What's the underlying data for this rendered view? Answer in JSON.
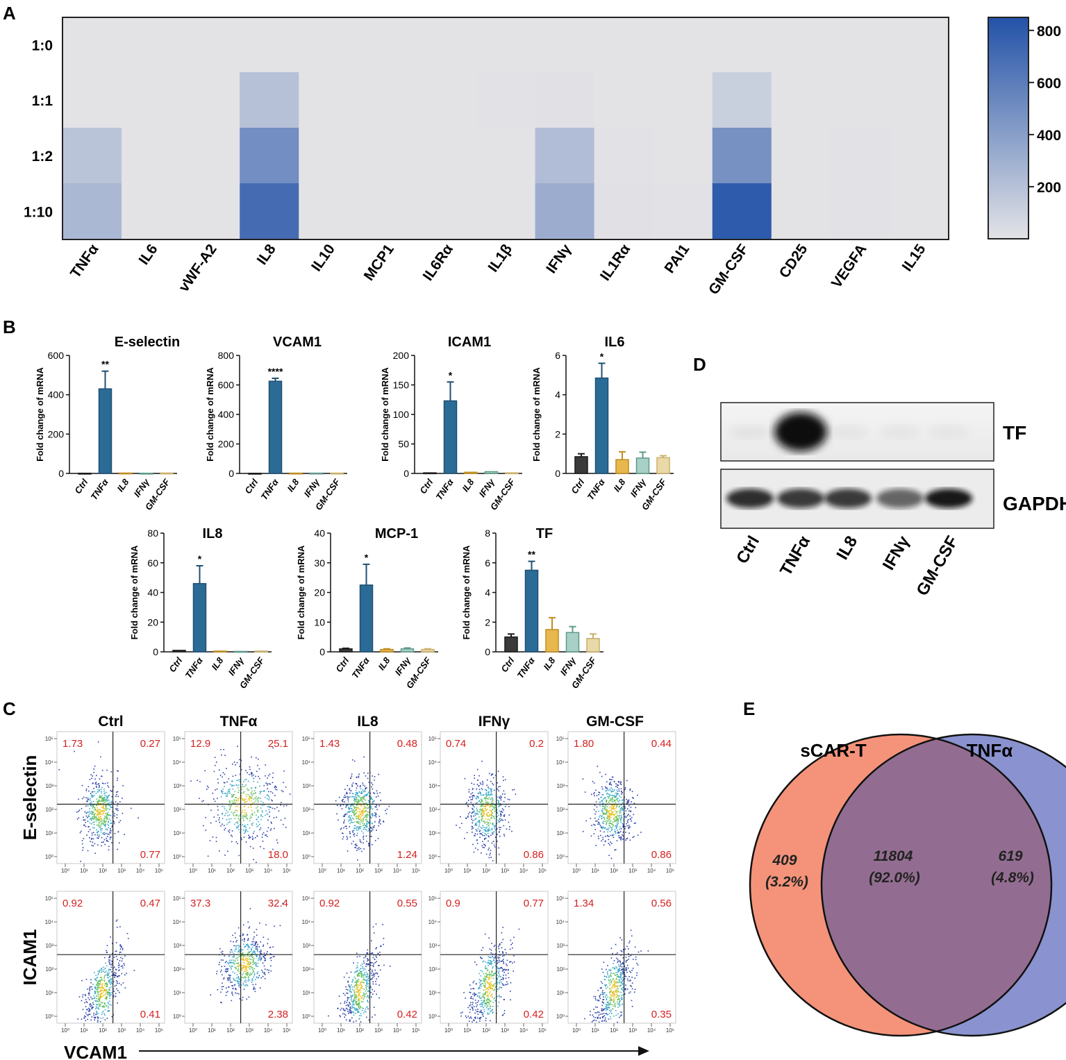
{
  "panels": {
    "A": "A",
    "B": "B",
    "C": "C",
    "D": "D",
    "E": "E"
  },
  "chart_data": [
    {
      "id": "A",
      "type": "heatmap",
      "title": "",
      "rows": [
        "1:0",
        "1:1",
        "1:2",
        "1:10"
      ],
      "columns": [
        "TNFα",
        "IL6",
        "vWF-A2",
        "IL8",
        "IL10",
        "MCP1",
        "IL6Rα",
        "IL1β",
        "IFNγ",
        "IL1Rα",
        "PAI1",
        "GM-CSF",
        "CD25",
        "VEGFA",
        "IL15"
      ],
      "values": [
        [
          0,
          0,
          0,
          0,
          0,
          0,
          0,
          0,
          0,
          0,
          0,
          0,
          0,
          0,
          0
        ],
        [
          0,
          0,
          0,
          200,
          0,
          0,
          0,
          5,
          10,
          0,
          0,
          120,
          0,
          0,
          0
        ],
        [
          180,
          0,
          0,
          500,
          0,
          0,
          0,
          0,
          220,
          5,
          0,
          480,
          0,
          5,
          0
        ],
        [
          250,
          0,
          0,
          700,
          0,
          0,
          0,
          0,
          320,
          10,
          5,
          800,
          0,
          5,
          0
        ]
      ],
      "colorbar": {
        "min": 0,
        "max": 850,
        "ticks": [
          200,
          400,
          600,
          800
        ],
        "low_color": "#e3e3e6",
        "high_color": "#2352a8"
      }
    },
    {
      "id": "B1",
      "type": "bar",
      "title": "E-selectin",
      "ylabel": "Fold change of mRNA",
      "ylim": [
        0,
        600
      ],
      "yticks": [
        0,
        200,
        400,
        600
      ],
      "categories": [
        "Ctrl",
        "TNFα",
        "IL8",
        "IFNγ",
        "GM-CSF"
      ],
      "values": [
        1,
        430,
        2,
        1,
        2
      ],
      "errors": [
        0.2,
        90,
        0.5,
        0.2,
        0.5
      ],
      "significance": [
        "",
        "**",
        "",
        "",
        ""
      ]
    },
    {
      "id": "B2",
      "type": "bar",
      "title": "VCAM1",
      "ylabel": "Fold change of mRNA",
      "ylim": [
        0,
        800
      ],
      "yticks": [
        0,
        200,
        400,
        600,
        800
      ],
      "categories": [
        "Ctrl",
        "TNFα",
        "IL8",
        "IFNγ",
        "GM-CSF"
      ],
      "values": [
        1,
        625,
        2,
        2,
        2
      ],
      "errors": [
        0.2,
        20,
        0.5,
        0.5,
        0.5
      ],
      "significance": [
        "",
        "****",
        "",
        "",
        ""
      ]
    },
    {
      "id": "B3",
      "type": "bar",
      "title": "ICAM1",
      "ylabel": "Fold change of mRNA",
      "ylim": [
        0,
        200
      ],
      "yticks": [
        0,
        50,
        100,
        150,
        200
      ],
      "categories": [
        "Ctrl",
        "TNFα",
        "IL8",
        "IFNγ",
        "GM-CSF"
      ],
      "values": [
        1,
        123,
        2,
        3,
        1
      ],
      "errors": [
        0.2,
        32,
        0.5,
        1,
        0.2
      ],
      "significance": [
        "",
        "*",
        "",
        "",
        ""
      ]
    },
    {
      "id": "B4",
      "type": "bar",
      "title": "IL6",
      "ylabel": "Fold change of mRNA",
      "ylim": [
        0,
        6
      ],
      "yticks": [
        0,
        2,
        4,
        6
      ],
      "categories": [
        "Ctrl",
        "TNFα",
        "IL8",
        "IFNγ",
        "GM-CSF"
      ],
      "values": [
        0.85,
        4.85,
        0.7,
        0.78,
        0.8
      ],
      "errors": [
        0.15,
        0.75,
        0.4,
        0.3,
        0.1
      ],
      "significance": [
        "",
        "*",
        "",
        "",
        ""
      ]
    },
    {
      "id": "B5",
      "type": "bar",
      "title": "IL8",
      "ylabel": "Fold change of mRNA",
      "ylim": [
        0,
        80
      ],
      "yticks": [
        0,
        20,
        40,
        60,
        80
      ],
      "categories": [
        "Ctrl",
        "TNFα",
        "IL8",
        "IFNγ",
        "GM-CSF"
      ],
      "values": [
        1,
        46,
        0.5,
        0.3,
        0.5
      ],
      "errors": [
        0.2,
        12,
        0.1,
        0.1,
        0.1
      ],
      "significance": [
        "",
        "*",
        "",
        "",
        ""
      ]
    },
    {
      "id": "B6",
      "type": "bar",
      "title": "MCP-1",
      "ylabel": "Fold change of mRNA",
      "ylim": [
        0,
        40
      ],
      "yticks": [
        0,
        10,
        20,
        30,
        40
      ],
      "categories": [
        "Ctrl",
        "TNFα",
        "IL8",
        "IFNγ",
        "GM-CSF"
      ],
      "values": [
        1,
        22.5,
        0.8,
        1,
        0.8
      ],
      "errors": [
        0.2,
        7,
        0.2,
        0.3,
        0.2
      ],
      "significance": [
        "",
        "*",
        "",
        "",
        ""
      ]
    },
    {
      "id": "B7",
      "type": "bar",
      "title": "TF",
      "ylabel": "Fold change of mRNA",
      "ylim": [
        0,
        8
      ],
      "yticks": [
        0,
        2,
        4,
        6,
        8
      ],
      "categories": [
        "Ctrl",
        "TNFα",
        "IL8",
        "IFNγ",
        "GM-CSF"
      ],
      "values": [
        1,
        5.5,
        1.5,
        1.3,
        0.9
      ],
      "errors": [
        0.2,
        0.6,
        0.8,
        0.4,
        0.3
      ],
      "significance": [
        "",
        "**",
        "",
        "",
        ""
      ]
    }
  ],
  "bar_colors": [
    "#3a3a3a",
    "#2b6c97",
    "#e8b84f",
    "#a9d0c6",
    "#ead9a8"
  ],
  "bar_edge_colors": [
    "#1a1a1a",
    "#1f4f70",
    "#c08c20",
    "#5e9a8c",
    "#c9b06a"
  ],
  "western_blot": {
    "lanes": [
      "Ctrl",
      "TNFα",
      "IL8",
      "IFNγ",
      "GM-CSF"
    ],
    "bands": [
      "TF",
      "GAPDH"
    ],
    "tf_intensity": [
      0.05,
      1.0,
      0.02,
      0.02,
      0.02
    ],
    "gapdh_intensity": [
      0.85,
      0.8,
      0.8,
      0.6,
      0.95
    ]
  },
  "flow": {
    "columns": [
      "Ctrl",
      "TNFα",
      "IL8",
      "IFNγ",
      "GM-CSF"
    ],
    "rows": [
      "E-selectin",
      "ICAM1"
    ],
    "x_axis_label": "VCAM1",
    "tick_labels": [
      "10⁰",
      "10¹",
      "10²",
      "10³",
      "10⁴",
      "10⁵"
    ],
    "y_tick_labels": [
      "10⁰",
      "10¹",
      "10²",
      "10³",
      "10⁴",
      "10⁵"
    ],
    "quadrants": [
      [
        [
          "1.73",
          "0.27",
          "0.77"
        ],
        [
          "12.9",
          "25.1",
          "18.0"
        ],
        [
          "1.43",
          "0.48",
          "1.24"
        ],
        [
          "0.74",
          "0.2",
          "0.86"
        ],
        [
          "1.80",
          "0.44",
          "0.86"
        ]
      ],
      [
        [
          "0.92",
          "0.47",
          "0.41"
        ],
        [
          "37.3",
          "32.4",
          "2.38"
        ],
        [
          "0.92",
          "0.55",
          "0.42"
        ],
        [
          "0.9",
          "0.77",
          "0.42"
        ],
        [
          "1.34",
          "0.56",
          "0.35"
        ]
      ]
    ]
  },
  "venn": {
    "left_title": "sCAR-T",
    "right_title": "TNFα",
    "left_only": "409",
    "left_only_pct": "(3.2%)",
    "overlap": "11804",
    "overlap_pct": "(92.0%)",
    "right_only": "619",
    "right_only_pct": "(4.8%)",
    "left_color": "#f4937a",
    "right_color": "#8a93cf",
    "overlap_color": "#936d91"
  }
}
